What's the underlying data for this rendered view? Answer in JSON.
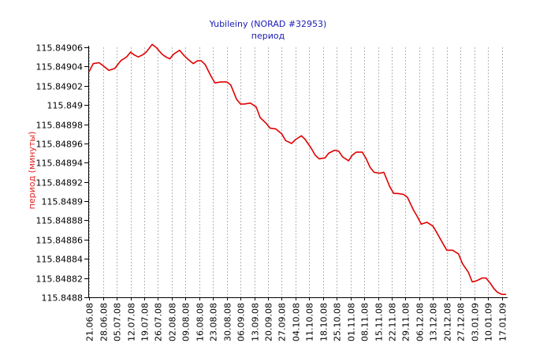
{
  "chart_data": {
    "type": "line",
    "title": "Yubileiny (NORAD #32953)",
    "subtitle": "период",
    "ylabel": "период (минуты)",
    "xlabel": "",
    "grid": true,
    "ylim": [
      115.8488,
      115.84906
    ],
    "y_ticks": [
      "115.84906",
      "115.84904",
      "115.84902",
      "115.849",
      "115.84898",
      "115.84896",
      "115.84894",
      "115.84892",
      "115.8489",
      "115.84888",
      "115.84886",
      "115.84884",
      "115.84882",
      "115.8488"
    ],
    "x_tick_labels": [
      "21.06.08",
      "28.06.08",
      "05.07.08",
      "12.07.08",
      "19.07.08",
      "26.07.08",
      "02.08.08",
      "09.08.08",
      "16.08.08",
      "23.08.08",
      "30.08.08",
      "06.09.08",
      "13.09.08",
      "20.09.08",
      "27.09.08",
      "04.10.08",
      "11.10.08",
      "18.10.08",
      "25.10.08",
      "01.11.08",
      "08.11.08",
      "15.11.08",
      "22.11.08",
      "29.11.08",
      "06.12.08",
      "13.12.08",
      "20.12.08",
      "27.12.08",
      "03.01.09",
      "10.01.09",
      "17.01.09"
    ],
    "series": [
      {
        "color": "#e00000",
        "x": [
          "2008-06-21",
          "2008-06-23",
          "2008-06-26",
          "2008-06-28",
          "2008-07-01",
          "2008-07-04",
          "2008-07-07",
          "2008-07-10",
          "2008-07-12",
          "2008-07-14",
          "2008-07-16",
          "2008-07-18",
          "2008-07-20",
          "2008-07-23",
          "2008-07-25",
          "2008-07-28",
          "2008-07-30",
          "2008-08-01",
          "2008-08-03",
          "2008-08-06",
          "2008-08-08",
          "2008-08-10",
          "2008-08-13",
          "2008-08-15",
          "2008-08-17",
          "2008-08-19",
          "2008-08-22",
          "2008-08-24",
          "2008-08-27",
          "2008-08-30",
          "2008-09-01",
          "2008-09-04",
          "2008-09-06",
          "2008-09-08",
          "2008-09-11",
          "2008-09-14",
          "2008-09-16",
          "2008-09-19",
          "2008-09-21",
          "2008-09-24",
          "2008-09-27",
          "2008-09-29",
          "2008-10-02",
          "2008-10-04",
          "2008-10-07",
          "2008-10-09",
          "2008-10-12",
          "2008-10-14",
          "2008-10-16",
          "2008-10-19",
          "2008-10-21",
          "2008-10-24",
          "2008-10-26",
          "2008-10-28",
          "2008-10-31",
          "2008-11-02",
          "2008-11-04",
          "2008-11-07",
          "2008-11-09",
          "2008-11-11",
          "2008-11-13",
          "2008-11-16",
          "2008-11-18",
          "2008-11-21",
          "2008-11-23",
          "2008-11-25",
          "2008-11-28",
          "2008-11-30",
          "2008-12-03",
          "2008-12-05",
          "2008-12-07",
          "2008-12-10",
          "2008-12-13",
          "2008-12-15",
          "2008-12-18",
          "2008-12-20",
          "2008-12-23",
          "2008-12-26",
          "2008-12-28",
          "2008-12-31",
          "2009-01-02",
          "2009-01-04",
          "2009-01-07",
          "2009-01-09",
          "2009-01-11",
          "2009-01-13",
          "2009-01-15",
          "2009-01-17",
          "2009-01-19"
        ],
        "y": [
          115.849035,
          115.849043,
          115.849044,
          115.849041,
          115.849036,
          115.849038,
          115.849046,
          115.84905,
          115.849055,
          115.849052,
          115.84905,
          115.849052,
          115.849055,
          115.849063,
          115.84906,
          115.849053,
          115.84905,
          115.849048,
          115.849053,
          115.849057,
          115.849052,
          115.849048,
          115.849043,
          115.849046,
          115.849046,
          115.849042,
          115.84903,
          115.849023,
          115.849024,
          115.849024,
          115.849021,
          115.849006,
          115.849001,
          115.849001,
          115.849002,
          115.848998,
          115.848987,
          115.848981,
          115.848976,
          115.848975,
          115.84897,
          115.848963,
          115.84896,
          115.848964,
          115.848968,
          115.848964,
          115.848955,
          115.848948,
          115.848944,
          115.848945,
          115.84895,
          115.848953,
          115.848952,
          115.848946,
          115.848942,
          115.848948,
          115.848951,
          115.848951,
          115.848944,
          115.848935,
          115.84893,
          115.848929,
          115.84893,
          115.848915,
          115.848908,
          115.848908,
          115.848907,
          115.848904,
          115.848891,
          115.848884,
          115.848876,
          115.848878,
          115.848874,
          115.848867,
          115.848856,
          115.848849,
          115.848849,
          115.848845,
          115.848835,
          115.848826,
          115.848816,
          115.848817,
          115.84882,
          115.84882,
          115.848815,
          115.848809,
          115.848805,
          115.848803,
          115.848803
        ]
      }
    ]
  }
}
